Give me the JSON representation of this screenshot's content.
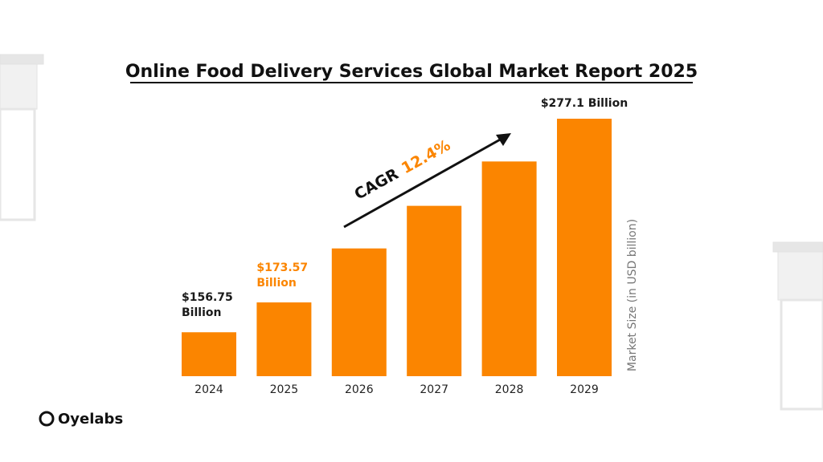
{
  "chart_data": {
    "type": "bar",
    "title": "Online Food Delivery Services Global Market Report 2025",
    "categories": [
      "2024",
      "2025",
      "2026",
      "2027",
      "2028",
      "2029"
    ],
    "values": [
      156.75,
      173.57,
      204,
      228,
      253,
      277.1
    ],
    "value_labels": [
      "$156.75 Billion",
      "$173.57 Billion",
      null,
      null,
      null,
      "$277.1 Billion"
    ],
    "color": "#fb8500",
    "ylim": [
      132,
      277.1
    ],
    "y_label": "Market Size (in USD billion)",
    "annotation": {
      "text": "CAGR",
      "highlight": "12.4%"
    }
  },
  "brand": "Oyelabs"
}
